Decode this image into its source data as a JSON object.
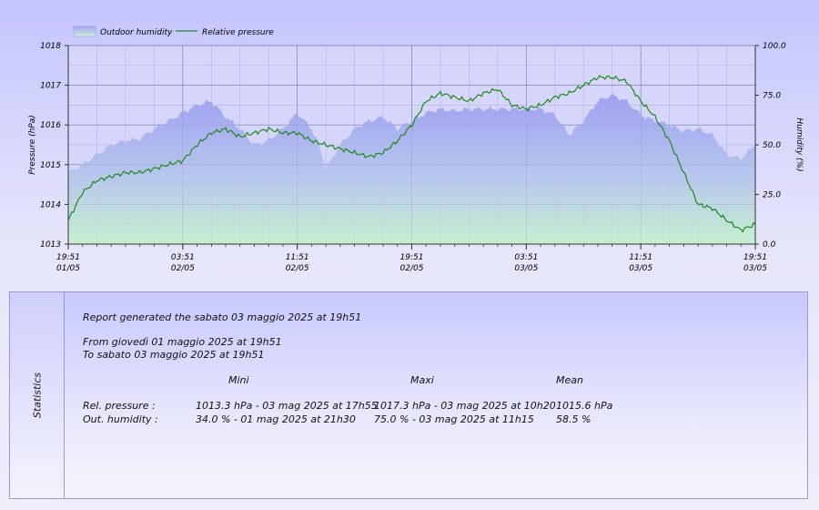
{
  "chart_data": {
    "type": "line",
    "legend": {
      "placement": "top-left",
      "items": [
        "Outdoor humidity",
        "Relative pressure"
      ]
    },
    "ylabel": "Pressure (hPa)",
    "y2label": "Humidity (%)",
    "ylim": [
      1013,
      1018
    ],
    "y2lim": [
      0,
      100
    ],
    "yticks": [
      "1013",
      "1014",
      "1015",
      "1016",
      "1017",
      "1018"
    ],
    "y2ticks": [
      "0.0",
      "25.0",
      "50.0",
      "75.0",
      "100.0"
    ],
    "x_time_range": [
      "2025-05-01 19:51",
      "2025-05-03 19:51"
    ],
    "xticks": [
      {
        "h": 0,
        "time": "19:51",
        "date": "01/05"
      },
      {
        "h": 8,
        "time": "03:51",
        "date": "02/05"
      },
      {
        "h": 16,
        "time": "11:51",
        "date": "02/05"
      },
      {
        "h": 24,
        "time": "19:51",
        "date": "02/05"
      },
      {
        "h": 32,
        "time": "03:51",
        "date": "03/05"
      },
      {
        "h": 40,
        "time": "11:51",
        "date": "03/05"
      },
      {
        "h": 48,
        "time": "19:51",
        "date": "03/05"
      }
    ],
    "grid": true,
    "series": [
      {
        "name": "Outdoor humidity",
        "axis": "right",
        "style": "area",
        "color": "#a6a6ee",
        "points": [
          [
            0,
            36
          ],
          [
            1,
            40
          ],
          [
            2,
            45
          ],
          [
            3,
            50
          ],
          [
            4,
            52
          ],
          [
            5,
            53
          ],
          [
            6,
            58
          ],
          [
            7,
            62
          ],
          [
            8,
            66
          ],
          [
            9,
            70
          ],
          [
            10,
            72
          ],
          [
            11,
            64
          ],
          [
            12,
            58
          ],
          [
            13,
            50
          ],
          [
            14,
            52
          ],
          [
            15,
            58
          ],
          [
            16,
            66
          ],
          [
            17,
            58
          ],
          [
            17.5,
            50
          ],
          [
            18,
            38
          ],
          [
            19,
            50
          ],
          [
            20,
            58
          ],
          [
            21,
            62
          ],
          [
            22,
            64
          ],
          [
            23,
            58
          ],
          [
            24,
            62
          ],
          [
            25,
            66
          ],
          [
            26,
            68
          ],
          [
            27,
            67
          ],
          [
            28,
            68
          ],
          [
            29,
            68
          ],
          [
            30,
            68
          ],
          [
            31,
            68
          ],
          [
            32,
            68
          ],
          [
            33,
            68
          ],
          [
            34,
            65
          ],
          [
            35,
            55
          ],
          [
            36,
            62
          ],
          [
            37,
            72
          ],
          [
            38,
            75
          ],
          [
            39,
            72
          ],
          [
            40,
            65
          ],
          [
            41,
            62
          ],
          [
            42,
            60
          ],
          [
            43,
            57
          ],
          [
            44,
            58
          ],
          [
            45,
            55
          ],
          [
            46,
            45
          ],
          [
            47,
            43
          ],
          [
            48,
            50
          ]
        ]
      },
      {
        "name": "Relative pressure",
        "axis": "left",
        "style": "line",
        "color": "#1e8a1e",
        "points": [
          [
            0,
            1013.6
          ],
          [
            1,
            1014.3
          ],
          [
            2,
            1014.6
          ],
          [
            3,
            1014.7
          ],
          [
            4,
            1014.8
          ],
          [
            5,
            1014.8
          ],
          [
            6,
            1014.9
          ],
          [
            7,
            1015.0
          ],
          [
            8,
            1015.1
          ],
          [
            9,
            1015.5
          ],
          [
            10,
            1015.8
          ],
          [
            11,
            1015.9
          ],
          [
            12,
            1015.7
          ],
          [
            13,
            1015.8
          ],
          [
            14,
            1015.9
          ],
          [
            15,
            1015.8
          ],
          [
            16,
            1015.8
          ],
          [
            17,
            1015.6
          ],
          [
            18,
            1015.5
          ],
          [
            19,
            1015.4
          ],
          [
            20,
            1015.3
          ],
          [
            21,
            1015.2
          ],
          [
            22,
            1015.3
          ],
          [
            23,
            1015.6
          ],
          [
            24,
            1016.0
          ],
          [
            25,
            1016.6
          ],
          [
            26,
            1016.8
          ],
          [
            27,
            1016.7
          ],
          [
            28,
            1016.6
          ],
          [
            29,
            1016.8
          ],
          [
            30,
            1016.9
          ],
          [
            31,
            1016.5
          ],
          [
            32,
            1016.4
          ],
          [
            33,
            1016.5
          ],
          [
            34,
            1016.7
          ],
          [
            35,
            1016.8
          ],
          [
            36,
            1017.0
          ],
          [
            37,
            1017.2
          ],
          [
            38,
            1017.2
          ],
          [
            39,
            1017.1
          ],
          [
            40,
            1016.6
          ],
          [
            41,
            1016.2
          ],
          [
            42,
            1015.6
          ],
          [
            43,
            1014.8
          ],
          [
            44,
            1014.0
          ],
          [
            45,
            1013.9
          ],
          [
            46,
            1013.6
          ],
          [
            47,
            1013.35
          ],
          [
            48,
            1013.5
          ]
        ]
      }
    ]
  },
  "stats": {
    "side_label": "Statistics",
    "report_line": "Report generated the sabato 03 maggio 2025 at 19h51",
    "from_line": "From giovedì 01 maggio 2025 at 19h51",
    "to_line": "To sabato 03 maggio 2025 at 19h51",
    "col_mini": "Mini",
    "col_maxi": "Maxi",
    "col_mean": "Mean",
    "rows": [
      {
        "label": "Rel. pressure :",
        "mini": "1013.3 hPa - 03 mag 2025 at 17h55",
        "maxi": "1017.3 hPa - 03 mag 2025 at 10h20",
        "mean": "1015.6 hPa"
      },
      {
        "label": "Out. humidity :",
        "mini": "34.0 % - 01 mag 2025 at 21h30",
        "maxi": "75.0 % - 03 mag 2025 at 11h15",
        "mean": "58.5 %"
      }
    ]
  }
}
